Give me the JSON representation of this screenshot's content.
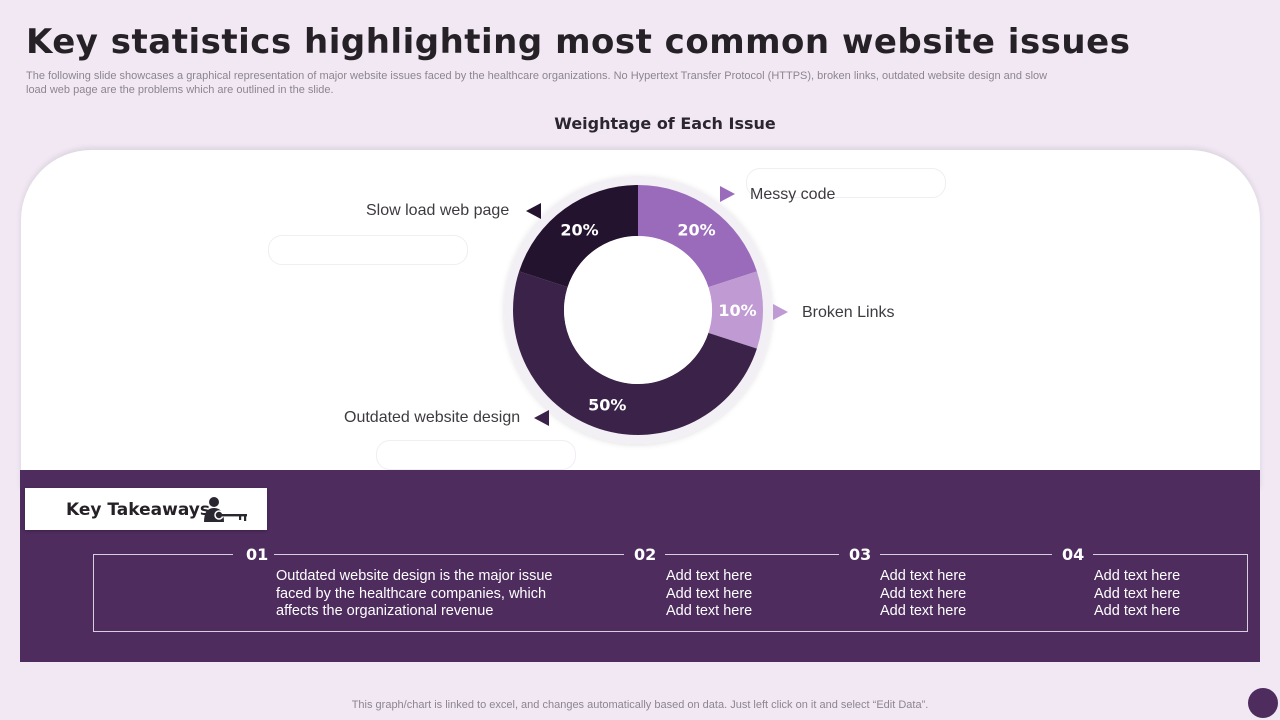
{
  "title": "Key statistics highlighting most common website issues",
  "subtitle": "The following slide showcases a graphical representation of major website issues faced by the healthcare organizations. No Hypertext Transfer Protocol (HTTPS), broken links, outdated website design and slow load web page are the problems which are outlined in the slide.",
  "chart_data": {
    "type": "pie",
    "title": "Weightage of Each Issue",
    "slices": [
      {
        "label": "Messy code",
        "value": 20,
        "display": "20%",
        "color": "#9b6bbb"
      },
      {
        "label": "Broken Links",
        "value": 10,
        "display": "10%",
        "color": "#bf9ad3"
      },
      {
        "label": "Outdated website design",
        "value": 50,
        "display": "50%",
        "color": "#3b2249"
      },
      {
        "label": "Slow load web page",
        "value": 20,
        "display": "20%",
        "color": "#23132e"
      }
    ]
  },
  "takeaways": {
    "label": "Key Takeaways",
    "items": [
      {
        "num": "01",
        "lines": [
          "Outdated website design is the major issue",
          "faced by the healthcare companies, which",
          "affects the organizational revenue"
        ]
      },
      {
        "num": "02",
        "lines": [
          "Add text here",
          "Add text here",
          "Add text here"
        ]
      },
      {
        "num": "03",
        "lines": [
          "Add text here",
          "Add text here",
          "Add text here"
        ]
      },
      {
        "num": "04",
        "lines": [
          "Add text here",
          "Add text here",
          "Add text here"
        ]
      }
    ]
  },
  "footer": "This graph/chart is linked to excel, and changes automatically based on data. Just left click on it and select “Edit Data”."
}
